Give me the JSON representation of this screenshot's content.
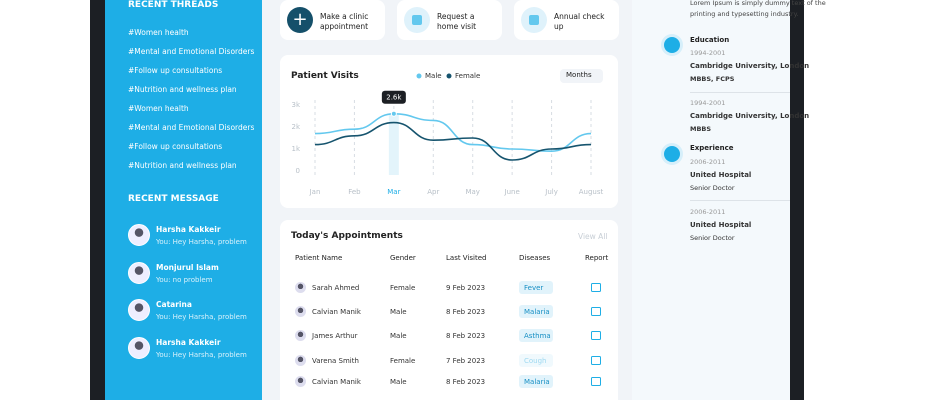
{
  "sidebar": {
    "threads_title": "RECENT THREADS",
    "threads": [
      "#Women health",
      "#Mental and Emotional Disorders",
      "#Follow up consultations",
      "#Nutrition and wellness plan",
      "#Women health",
      "#Mental and Emotional Disorders",
      "#Follow up consultations",
      "#Nutrition and wellness plan"
    ],
    "messages_title": "RECENT MESSAGE",
    "messages": [
      {
        "name": "Harsha Kakkeir",
        "text": "You: Hey Harsha, problem"
      },
      {
        "name": "Monjurul Islam",
        "text": "You: no problem"
      },
      {
        "name": "Catarina",
        "text": "You: Hey Harsha, problem"
      },
      {
        "name": "Harsha Kakkeir",
        "text": "You: Hey Harsha, problem"
      }
    ]
  },
  "actions": [
    "Make a clinic appointment",
    "Request a home visit",
    "Annual check up"
  ],
  "patient_visits": {
    "type": "line",
    "title": "Patient Visits",
    "period": "Months",
    "categories": [
      "Jan",
      "Feb",
      "Mar",
      "Apr",
      "May",
      "June",
      "July",
      "August"
    ],
    "series": [
      {
        "name": "Male",
        "color": "#63c8ee",
        "values": [
          1700,
          1900,
          2600,
          2300,
          1200,
          1000,
          900,
          1700
        ]
      },
      {
        "name": "Female",
        "color": "#16546e",
        "values": [
          1200,
          1600,
          2200,
          1400,
          1500,
          500,
          1000,
          1200
        ]
      }
    ],
    "ylim": [
      0,
      3000
    ],
    "yticks": [
      {
        "value": 0,
        "label": "0"
      },
      {
        "value": 1000,
        "label": "1k"
      },
      {
        "value": 2000,
        "label": "2k"
      },
      {
        "value": 3000,
        "label": "3k"
      }
    ],
    "tooltip": "2.6k"
  },
  "appointments": {
    "title": "Today's Appointments",
    "view_all": "View All",
    "columns": [
      "Patient Name",
      "Gender",
      "Last Visited",
      "Diseases",
      "Report"
    ],
    "rows": [
      [
        "Sarah Ahmed",
        "Female",
        "9 Feb 2023",
        "Fever"
      ],
      [
        "Calvian Manik",
        "Male",
        "8 Feb 2023",
        "Malaria"
      ],
      [
        "James Arthur",
        "Male",
        "8 Feb 2023",
        "Asthma"
      ],
      [
        "Varena Smith",
        "Female",
        "7 Feb 2023",
        "Cough"
      ],
      [
        "Calvian Manik",
        "Male",
        "8 Feb 2023",
        "Malaria"
      ]
    ]
  },
  "profile": {
    "intro": [
      "Lorem Ipsum is simply dummy text of the",
      "printing and typesetting industry."
    ],
    "education_title": "Education",
    "education": [
      {
        "years": "1994-2001",
        "place": "Cambridge University, London",
        "degree": "MBBS, FCPS"
      },
      {
        "years": "1994-2001",
        "place": "Cambridge University, London",
        "degree": "MBBS"
      }
    ],
    "experience_title": "Experience",
    "experience": [
      {
        "years": "2006-2011",
        "place": "United Hospital",
        "role": "Senior Doctor"
      },
      {
        "years": "2006-2011",
        "place": "United Hospital",
        "role": "Senior Doctor"
      }
    ]
  }
}
